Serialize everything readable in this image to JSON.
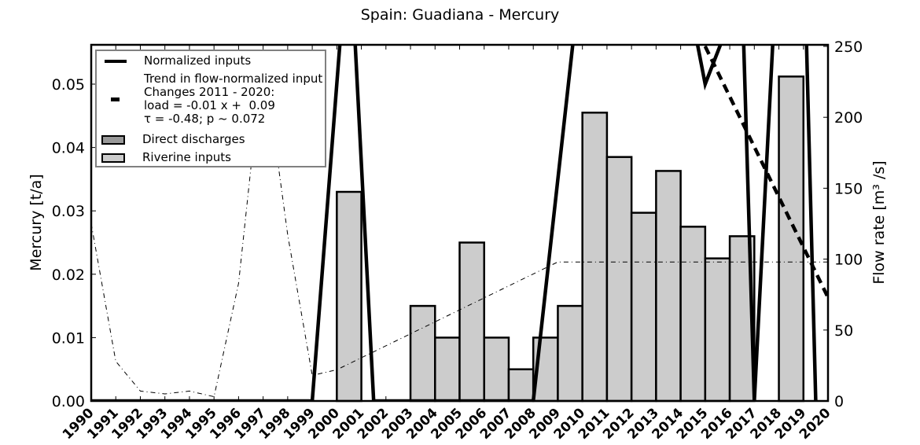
{
  "title": "Spain: Guadiana - Mercury",
  "axes": {
    "left_label": "Mercury [t/a]",
    "right_label": "Flow rate [m³ /s]",
    "left_ticks": [
      "0.00",
      "0.01",
      "0.02",
      "0.03",
      "0.04",
      "0.05"
    ],
    "right_ticks": [
      "0",
      "50",
      "100",
      "150",
      "200",
      "250"
    ],
    "x_ticks": [
      "1990",
      "1991",
      "1992",
      "1993",
      "1994",
      "1995",
      "1996",
      "1997",
      "1998",
      "1999",
      "2000",
      "2001",
      "2002",
      "2003",
      "2004",
      "2005",
      "2006",
      "2007",
      "2008",
      "2009",
      "2010",
      "2011",
      "2012",
      "2013",
      "2014",
      "2015",
      "2016",
      "2017",
      "2018",
      "2019",
      "2020"
    ]
  },
  "legend": {
    "normalized": "Normalized inputs",
    "trend_line1": "Trend in flow-normalized input",
    "trend_line2": "Changes 2011 - 2020:",
    "trend_line3": "load = -0.01 x +  0.09",
    "trend_line4": "τ = -0.48; p ~ 0.072",
    "direct": "Direct discharges",
    "riverine": "Riverine inputs"
  },
  "colors": {
    "riverine_fill": "#cccccc",
    "direct_fill": "#999999",
    "line": "#000000",
    "legend_border": "#808080"
  },
  "chart_data": {
    "type": "bar",
    "title": "Spain: Guadiana - Mercury",
    "xlabel": "",
    "ylabel": "Mercury [t/a]",
    "y2label": "Flow rate [m³ /s]",
    "ylim": [
      0,
      0.056
    ],
    "y2lim": [
      0,
      250
    ],
    "xlim": [
      1990,
      2020
    ],
    "legend_position": "upper left",
    "grid": false,
    "categories": [
      1990,
      1991,
      1992,
      1993,
      1994,
      1995,
      1996,
      1997,
      1998,
      1999,
      2000,
      2001,
      2002,
      2003,
      2004,
      2005,
      2006,
      2007,
      2008,
      2009,
      2010,
      2011,
      2012,
      2013,
      2014,
      2015,
      2016,
      2017,
      2018,
      2019
    ],
    "series": [
      {
        "name": "Riverine inputs",
        "type": "bar",
        "axis": "left",
        "values": [
          0,
          0,
          0,
          0,
          0,
          0,
          0,
          0,
          0,
          0,
          0.033,
          0,
          0,
          0.015,
          0.01,
          0.025,
          0.01,
          0.005,
          0.01,
          0.015,
          0.0455,
          0.0385,
          0.0297,
          0.0363,
          0.0275,
          0.0225,
          0.026,
          0,
          0.0512,
          0
        ]
      },
      {
        "name": "Direct discharges",
        "type": "bar",
        "axis": "left",
        "values": [
          0,
          0,
          0,
          0,
          0,
          0,
          0,
          0,
          0,
          0,
          0,
          0,
          0,
          0,
          0,
          0,
          0,
          0,
          0,
          0,
          0,
          0,
          0,
          0,
          0,
          0,
          0,
          0,
          0,
          0
        ]
      },
      {
        "name": "Normalized inputs",
        "type": "line",
        "axis": "left",
        "points": [
          [
            1990,
            0
          ],
          [
            1999,
            0
          ],
          [
            2000.5,
            0.075
          ],
          [
            2001.5,
            0
          ],
          [
            2008,
            0
          ],
          [
            2010,
            0.07
          ],
          [
            2014.5,
            0.06
          ],
          [
            2015,
            0.05
          ],
          [
            2016.5,
            0.065
          ],
          [
            2017,
            0
          ],
          [
            2018,
            0.075
          ],
          [
            2019,
            0.075
          ],
          [
            2019.5,
            0
          ]
        ]
      },
      {
        "name": "Trend in flow-normalized input",
        "type": "line",
        "style": "dashed",
        "axis": "right",
        "points": [
          [
            2015,
            250
          ],
          [
            2020,
            73
          ]
        ]
      },
      {
        "name": "Flow rate",
        "type": "line",
        "style": "dashdot",
        "axis": "right",
        "points": [
          [
            1990,
            125
          ],
          [
            1991,
            28
          ],
          [
            1992,
            7
          ],
          [
            1993,
            5
          ],
          [
            1994,
            7
          ],
          [
            1995,
            3
          ],
          [
            1996,
            83
          ],
          [
            1997,
            245
          ],
          [
            1998,
            117
          ],
          [
            1999,
            18
          ],
          [
            2000,
            22
          ],
          [
            2009,
            98
          ],
          [
            2020,
            98
          ]
        ]
      }
    ]
  }
}
